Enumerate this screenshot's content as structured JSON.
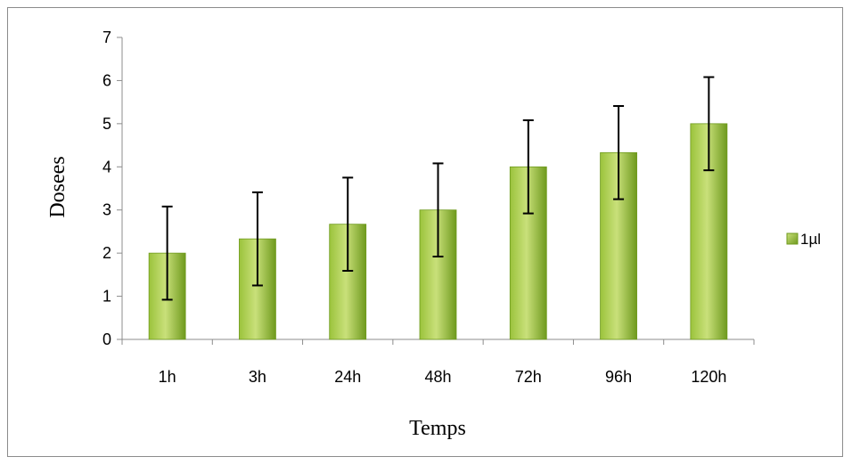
{
  "chart_data": {
    "type": "bar",
    "categories": [
      "1h",
      "3h",
      "24h",
      "48h",
      "72h",
      "96h",
      "120h"
    ],
    "series": [
      {
        "name": "1µl",
        "values": [
          2.0,
          2.33,
          2.67,
          3.0,
          4.0,
          4.33,
          5.0
        ],
        "error": [
          1.08,
          1.08,
          1.08,
          1.08,
          1.08,
          1.08,
          1.08
        ]
      }
    ],
    "title": "",
    "xlabel": "Temps",
    "ylabel": "Dosees",
    "ylim": [
      0,
      7
    ],
    "yticks": [
      0,
      1,
      2,
      3,
      4,
      5,
      6,
      7
    ],
    "grid": false,
    "legend": "right",
    "colors": {
      "bar_light": "#c9e07a",
      "bar_mid": "#9bc33c",
      "bar_dark": "#6f9a1e",
      "error_bar": "#000000",
      "axis": "#8c8c8c"
    }
  }
}
